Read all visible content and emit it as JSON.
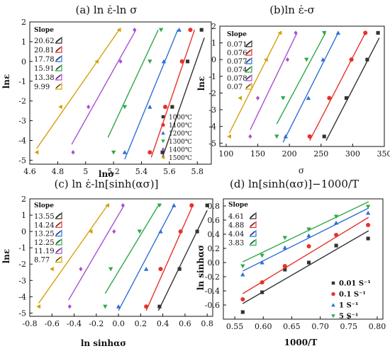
{
  "colors": {
    "1000": "#333333",
    "1100": "#e8312a",
    "1200": "#2f6fd6",
    "1300": "#2ea84a",
    "1400": "#a94fd0",
    "1500": "#d4a20e"
  },
  "chart_data": [
    {
      "id": "a",
      "type": "scatter",
      "title": "(a) ln ε̇-ln σ",
      "xlabel": "lnσ",
      "ylabel": "lnε",
      "xlim": [
        4.6,
        5.9
      ],
      "ylim": [
        -5.2,
        2.0
      ],
      "xticks": [
        4.6,
        4.8,
        5.0,
        5.2,
        5.4,
        5.6,
        5.8
      ],
      "yticks": [
        -5,
        -4,
        -3,
        -2,
        -1,
        0,
        1,
        2
      ],
      "slope_label": "Slope",
      "legend_position": "bottom-right",
      "series": [
        {
          "name": "1000℃",
          "color": "#333333",
          "marker": "square",
          "slope": "20.62",
          "x": [
            5.55,
            5.62,
            5.73,
            5.83
          ],
          "y": [
            -4.6,
            -2.3,
            0.0,
            1.6
          ],
          "fit": [
            [
              5.55,
              -4.85
            ],
            [
              5.85,
              1.2
            ]
          ]
        },
        {
          "name": "1100℃",
          "color": "#e8312a",
          "marker": "circle",
          "slope": "20.81",
          "x": [
            5.46,
            5.57,
            5.69,
            5.75
          ],
          "y": [
            -4.6,
            -2.3,
            0.0,
            1.6
          ],
          "fit": [
            [
              5.47,
              -4.85
            ],
            [
              5.78,
              1.6
            ]
          ]
        },
        {
          "name": "1200℃",
          "color": "#2f6fd6",
          "marker": "triangle",
          "slope": "17.78",
          "x": [
            5.28,
            5.46,
            5.56,
            5.67
          ],
          "y": [
            -4.6,
            -2.3,
            0.0,
            1.6
          ],
          "fit": [
            [
              5.28,
              -4.95
            ],
            [
              5.66,
              1.6
            ]
          ]
        },
        {
          "name": "1300℃",
          "color": "#2ea84a",
          "marker": "triangle-down",
          "slope": "15.91",
          "x": [
            5.2,
            5.28,
            5.46,
            5.54
          ],
          "y": [
            -4.6,
            -2.3,
            0.0,
            1.6
          ],
          "fit": [
            [
              5.16,
              -3.85
            ],
            [
              5.52,
              1.6
            ]
          ]
        },
        {
          "name": "1400℃",
          "color": "#a94fd0",
          "marker": "diamond",
          "slope": "13.38",
          "x": [
            4.91,
            5.02,
            5.25,
            5.35
          ],
          "y": [
            -4.6,
            -2.3,
            0.0,
            1.6
          ],
          "fit": [
            [
              4.9,
              -4.2
            ],
            [
              5.36,
              1.6
            ]
          ]
        },
        {
          "name": "1500℃",
          "color": "#d4a20e",
          "marker": "triangle-left",
          "slope": "9.99",
          "x": [
            4.65,
            4.82,
            5.08,
            5.24
          ],
          "y": [
            -4.6,
            -2.3,
            0.0,
            1.6
          ],
          "fit": [
            [
              4.65,
              -4.4
            ],
            [
              5.24,
              1.6
            ]
          ]
        }
      ]
    },
    {
      "id": "b",
      "type": "scatter",
      "title": "(b)ln ε̇-σ",
      "xlabel": "σ",
      "ylabel": "lnε",
      "xlim": [
        90,
        350
      ],
      "ylim": [
        -5.2,
        2.0
      ],
      "xticks": [
        100,
        150,
        200,
        250,
        300,
        350
      ],
      "yticks": [
        -5,
        -4,
        -3,
        -2,
        -1,
        0,
        1,
        2
      ],
      "slope_label": "Slope",
      "series": [
        {
          "name": "1000℃",
          "color": "#333333",
          "marker": "square",
          "slope": "0.071",
          "x": [
            255,
            290,
            323,
            340
          ],
          "y": [
            -4.6,
            -2.3,
            0.0,
            1.6
          ],
          "fit": [
            [
              258,
              -4.85
            ],
            [
              342,
              1.3
            ]
          ]
        },
        {
          "name": "1100℃",
          "color": "#e8312a",
          "marker": "circle",
          "slope": "0.076",
          "x": [
            232,
            263,
            298,
            320
          ],
          "y": [
            -4.6,
            -2.3,
            0.0,
            1.6
          ],
          "fit": [
            [
              232,
              -4.85
            ],
            [
              320,
              1.6
            ]
          ]
        },
        {
          "name": "1200℃",
          "color": "#2f6fd6",
          "marker": "triangle",
          "slope": "0.077",
          "x": [
            194,
            230,
            253,
            277
          ],
          "y": [
            -4.6,
            -2.3,
            0.0,
            1.6
          ],
          "fit": [
            [
              190,
              -4.95
            ],
            [
              277,
              1.6
            ]
          ]
        },
        {
          "name": "1300℃",
          "color": "#2ea84a",
          "marker": "triangle-down",
          "slope": "0.074",
          "x": [
            180,
            190,
            227,
            255
          ],
          "y": [
            -4.6,
            -2.3,
            0.0,
            1.6
          ],
          "fit": [
            [
              180,
              -3.85
            ],
            [
              257,
              1.6
            ]
          ]
        },
        {
          "name": "1400℃",
          "color": "#a94fd0",
          "marker": "diamond",
          "slope": "0.078",
          "x": [
            138,
            150,
            197,
            210
          ],
          "y": [
            -4.6,
            -2.3,
            0.0,
            1.6
          ],
          "fit": [
            [
              138,
              -4.2
            ],
            [
              212,
              1.6
            ]
          ]
        },
        {
          "name": "1500℃",
          "color": "#d4a20e",
          "marker": "triangle-left",
          "slope": "0.07",
          "x": [
            105,
            122,
            163,
            185
          ],
          "y": [
            -4.6,
            -2.3,
            0.0,
            1.6
          ],
          "fit": [
            [
              105,
              -4.4
            ],
            [
              185,
              1.6
            ]
          ]
        }
      ]
    },
    {
      "id": "c",
      "type": "scatter",
      "title": "(c) ln ε̇-ln[sinh(ασ)]",
      "xlabel": "ln sinhασ",
      "ylabel": "lnε",
      "xlim": [
        -0.8,
        0.85
      ],
      "ylim": [
        -5.2,
        2.0
      ],
      "xticks": [
        -0.8,
        -0.6,
        -0.4,
        -0.2,
        0.0,
        0.2,
        0.4,
        0.6,
        0.8
      ],
      "xtick_labels": [
        "-0.8",
        "-0.6",
        "-0.4",
        "-0.2",
        "0.0",
        "0.2",
        "0.4",
        "0.6",
        "0.8"
      ],
      "yticks": [
        -5,
        -4,
        -3,
        -2,
        -1,
        0,
        1,
        2
      ],
      "slope_label": "Slope",
      "series": [
        {
          "name": "1000℃",
          "color": "#333333",
          "marker": "square",
          "slope": "13.55",
          "x": [
            0.37,
            0.55,
            0.71,
            0.8
          ],
          "y": [
            -4.6,
            -2.3,
            0.0,
            1.6
          ],
          "fit": [
            [
              0.36,
              -4.85
            ],
            [
              0.8,
              1.3
            ]
          ]
        },
        {
          "name": "1100℃",
          "color": "#e8312a",
          "marker": "circle",
          "slope": "14.24",
          "x": [
            0.25,
            0.38,
            0.56,
            0.66
          ],
          "y": [
            -4.6,
            -2.3,
            0.0,
            1.6
          ],
          "fit": [
            [
              0.25,
              -4.85
            ],
            [
              0.67,
              1.6
            ]
          ]
        },
        {
          "name": "1200℃",
          "color": "#2f6fd6",
          "marker": "triangle",
          "slope": "13.25",
          "x": [
            0.0,
            0.25,
            0.38,
            0.5
          ],
          "y": [
            -4.6,
            -2.3,
            0.0,
            1.6
          ],
          "fit": [
            [
              0.0,
              -4.85
            ],
            [
              0.5,
              1.6
            ]
          ]
        },
        {
          "name": "1300℃",
          "color": "#2ea84a",
          "marker": "triangle-down",
          "slope": "12.25",
          "x": [
            -0.12,
            -0.07,
            0.19,
            0.37
          ],
          "y": [
            -4.6,
            -2.3,
            0.0,
            1.6
          ],
          "fit": [
            [
              -0.12,
              -3.8
            ],
            [
              0.36,
              1.6
            ]
          ]
        },
        {
          "name": "1400℃",
          "color": "#a94fd0",
          "marker": "diamond",
          "slope": "11.19",
          "x": [
            -0.44,
            -0.34,
            -0.04,
            0.04
          ],
          "y": [
            -4.6,
            -2.3,
            0.0,
            1.6
          ],
          "fit": [
            [
              -0.45,
              -4.2
            ],
            [
              0.05,
              1.6
            ]
          ]
        },
        {
          "name": "1500℃",
          "color": "#d4a20e",
          "marker": "triangle-left",
          "slope": "8.77",
          "x": [
            -0.72,
            -0.6,
            -0.25,
            -0.1
          ],
          "y": [
            -4.6,
            -2.3,
            0.0,
            1.6
          ],
          "fit": [
            [
              -0.72,
              -4.4
            ],
            [
              -0.1,
              1.6
            ]
          ]
        }
      ]
    },
    {
      "id": "d",
      "type": "scatter",
      "title": "(d) ln[sinh(ασ)]−1000/T",
      "xlabel": "1000/T",
      "ylabel": "ln sinhασ",
      "xlim": [
        0.53,
        0.81
      ],
      "ylim": [
        -0.8,
        0.9
      ],
      "xticks": [
        0.55,
        0.6,
        0.65,
        0.7,
        0.75,
        0.8
      ],
      "xtick_labels": [
        "0.55",
        "0.60",
        "0.65",
        "0.70",
        "0.75",
        "0.80"
      ],
      "yticks": [
        -0.6,
        -0.4,
        -0.2,
        0.0,
        0.2,
        0.4,
        0.6,
        0.8
      ],
      "ytick_labels": [
        "-0.6",
        "-0.4",
        "-0.2",
        "0.0",
        "0.2",
        "0.4",
        "0.6",
        "0.8"
      ],
      "slope_label": "Slope",
      "legend_position": "bottom-right",
      "series": [
        {
          "name": "0.01 S⁻¹",
          "color": "#333333",
          "marker": "square",
          "slope": "4.61",
          "x": [
            0.564,
            0.598,
            0.638,
            0.68,
            0.728,
            0.784
          ],
          "y": [
            -0.7,
            -0.42,
            -0.1,
            0.0,
            0.24,
            0.34
          ],
          "fit": [
            [
              0.564,
              -0.58
            ],
            [
              0.785,
              0.45
            ]
          ]
        },
        {
          "name": "0.1 S⁻¹",
          "color": "#e8312a",
          "marker": "circle",
          "slope": "4.88",
          "x": [
            0.564,
            0.598,
            0.638,
            0.68,
            0.728,
            0.784
          ],
          "y": [
            -0.52,
            -0.28,
            -0.05,
            0.23,
            0.39,
            0.53
          ],
          "fit": [
            [
              0.564,
              -0.44
            ],
            [
              0.785,
              0.64
            ]
          ]
        },
        {
          "name": "1 S⁻¹",
          "color": "#2f6fd6",
          "marker": "triangle",
          "slope": "4.04",
          "x": [
            0.564,
            0.598,
            0.638,
            0.68,
            0.728,
            0.784
          ],
          "y": [
            -0.17,
            0.0,
            0.21,
            0.38,
            0.56,
            0.7
          ],
          "fit": [
            [
              0.564,
              -0.12
            ],
            [
              0.785,
              0.77
            ]
          ]
        },
        {
          "name": "5 S⁻¹",
          "color": "#2ea84a",
          "marker": "triangle-down",
          "slope": "3.83",
          "x": [
            0.564,
            0.598,
            0.638,
            0.68,
            0.728,
            0.784
          ],
          "y": [
            -0.05,
            0.1,
            0.35,
            0.47,
            0.65,
            0.79
          ],
          "fit": [
            [
              0.564,
              0.01
            ],
            [
              0.785,
              0.86
            ]
          ]
        }
      ]
    }
  ]
}
